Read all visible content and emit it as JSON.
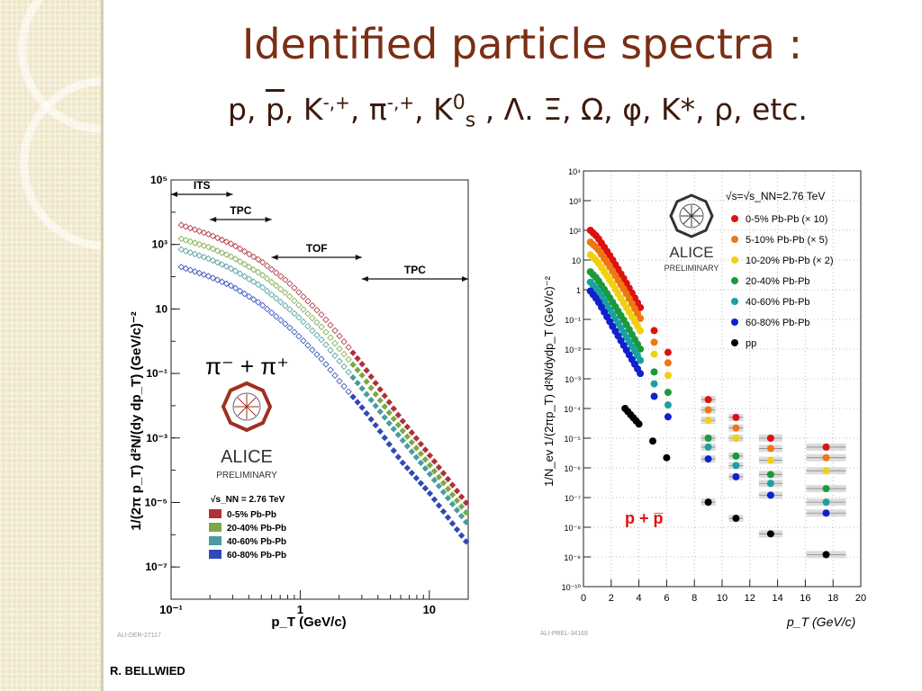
{
  "slide": {
    "title": "Identified particle spectra :",
    "subtitle_parts": [
      "p, ",
      "p",
      ", K",
      "-,+",
      ", π",
      "-,+",
      ", K",
      "0",
      "s",
      " , Λ. Ξ, Ω, φ, K*, ρ, etc."
    ],
    "author": "R. BELLWIED"
  },
  "colors": {
    "title": "#7a2f15",
    "sidebar": "#efe6c8",
    "series_left": [
      "#b0303a",
      "#7aa846",
      "#4a9c9c",
      "#3048b8"
    ],
    "series_right": [
      "#dd1111",
      "#ee7711",
      "#f0d010",
      "#1a9a3a",
      "#1aa0a0",
      "#1020cc",
      "#000000"
    ]
  },
  "chart_data": [
    {
      "type": "scatter",
      "title": "",
      "xlabel": "p_T (GeV/c)",
      "ylabel": "1/(2π p_T) d²N/(dy dp_T) (GeV/c)⁻²",
      "xscale": "log",
      "yscale": "log",
      "xlim": [
        0.1,
        20
      ],
      "ylim": [
        1e-08,
        100000.0
      ],
      "x_tick_labels": [
        "10⁻¹",
        "1",
        "10"
      ],
      "y_tick_labels": [
        "10⁵",
        "10³",
        "10",
        "10⁻¹",
        "10⁻³",
        "10⁻⁵",
        "10⁻⁷"
      ],
      "particle_label": "π⁻ + π⁺",
      "energy_label": "√s_NN = 2.76 TeV",
      "logo_text": [
        "ALICE",
        "PRELIMINARY"
      ],
      "watermark": "ALI-DER-27117",
      "ranges": [
        {
          "label": "ITS",
          "from": 0.1,
          "to": 0.3
        },
        {
          "label": "TPC",
          "from": 0.2,
          "to": 0.6
        },
        {
          "label": "TOF",
          "from": 0.6,
          "to": 3.0
        },
        {
          "label": "TPC",
          "from": 3.0,
          "to": 20
        }
      ],
      "series": [
        {
          "name": "0-5% Pb-Pb",
          "x": [
            0.12,
            0.2,
            0.3,
            0.5,
            0.8,
            1.0,
            1.5,
            2.0,
            3.0,
            4.0,
            6.0,
            10.0,
            20.0
          ],
          "values": [
            4000,
            2000,
            1000,
            300,
            70,
            30,
            6,
            1.5,
            0.2,
            0.04,
            0.004,
            0.0003,
            8e-06
          ]
        },
        {
          "name": "20-40% Pb-Pb",
          "x": [
            0.12,
            0.2,
            0.3,
            0.5,
            0.8,
            1.0,
            1.5,
            2.0,
            3.0,
            4.0,
            6.0,
            10.0,
            20.0
          ],
          "values": [
            1500,
            800,
            400,
            120,
            28,
            12,
            2.5,
            0.6,
            0.09,
            0.018,
            0.002,
            0.00015,
            4e-06
          ]
        },
        {
          "name": "40-60% Pb-Pb",
          "x": [
            0.12,
            0.2,
            0.3,
            0.5,
            0.8,
            1.0,
            1.5,
            2.0,
            3.0,
            4.0,
            6.0,
            10.0,
            20.0
          ],
          "values": [
            700,
            350,
            170,
            50,
            11,
            5,
            1,
            0.25,
            0.035,
            0.008,
            0.001,
            8e-05,
            2e-06
          ]
        },
        {
          "name": "60-80% Pb-Pb",
          "x": [
            0.12,
            0.2,
            0.3,
            0.5,
            0.8,
            1.0,
            1.5,
            2.0,
            3.0,
            4.0,
            6.0,
            10.0,
            20.0
          ],
          "values": [
            200,
            100,
            50,
            14,
            3,
            1.3,
            0.25,
            0.06,
            0.009,
            0.002,
            0.0002,
            2e-05,
            5e-07
          ]
        }
      ]
    },
    {
      "type": "scatter",
      "title": "",
      "xlabel": "p_T (GeV/c)",
      "ylabel": "1/N_ev 1/(2πp_T) d²N/dydp_T (GeV/c)⁻²",
      "xscale": "linear",
      "yscale": "log",
      "xlim": [
        0,
        20
      ],
      "ylim": [
        1e-10,
        10000.0
      ],
      "x_tick_labels": [
        "0",
        "2",
        "4",
        "6",
        "8",
        "10",
        "12",
        "14",
        "16",
        "18",
        "20"
      ],
      "y_tick_labels": [
        "10⁴",
        "10³",
        "10²",
        "10",
        "1",
        "10⁻¹",
        "10⁻²",
        "10⁻³",
        "10⁻⁴",
        "10⁻⁵",
        "10⁻⁶",
        "10⁻⁷",
        "10⁻⁸",
        "10⁻⁹",
        "10⁻¹⁰"
      ],
      "particle_label": "p + p̅",
      "energy_label": "√s=√s_NN=2.76 TeV",
      "logo_text": [
        "ALICE",
        "PRELIMINARY"
      ],
      "watermark": "ALI-PREL-34169",
      "series": [
        {
          "name": "0-5% Pb-Pb (× 10)",
          "x": [
            0.5,
            1,
            2,
            3,
            4,
            5,
            6,
            7,
            9,
            11,
            13.5,
            17.5
          ],
          "values": [
            100,
            60,
            12,
            2,
            0.3,
            0.05,
            0.009,
            0.002,
            0.0002,
            5e-05,
            1e-05,
            5e-06
          ]
        },
        {
          "name": "5-10%  Pb-Pb (× 5)",
          "x": [
            0.5,
            1,
            2,
            3,
            4,
            5,
            6,
            7,
            9,
            11,
            13.5,
            17.5
          ],
          "values": [
            40,
            25,
            5,
            0.9,
            0.13,
            0.02,
            0.004,
            0.0009,
            9e-05,
            2.2e-05,
            4.5e-06,
            2.2e-06
          ]
        },
        {
          "name": "10-20% Pb-Pb (× 2)",
          "x": [
            0.5,
            1,
            2,
            3,
            4,
            5,
            6,
            7,
            9,
            11,
            13.5,
            17.5
          ],
          "values": [
            15,
            9,
            1.8,
            0.3,
            0.05,
            0.008,
            0.0015,
            0.0004,
            4e-05,
            1e-05,
            1.8e-06,
            8e-07
          ]
        },
        {
          "name": "20-40% Pb-Pb",
          "x": [
            0.5,
            1,
            2,
            3,
            4,
            5,
            6,
            7,
            9,
            11,
            13.5,
            17.5
          ],
          "values": [
            4,
            2.3,
            0.45,
            0.08,
            0.012,
            0.002,
            0.0004,
            0.0001,
            1e-05,
            2.5e-06,
            6e-07,
            2e-07
          ]
        },
        {
          "name": "40-60% Pb-Pb",
          "x": [
            0.5,
            1,
            2,
            3,
            4,
            5,
            6,
            7,
            9,
            11,
            13.5,
            17.5
          ],
          "values": [
            1.8,
            1.0,
            0.18,
            0.03,
            0.005,
            0.0008,
            0.00015,
            4e-05,
            5e-06,
            1.2e-06,
            3e-07,
            7e-08
          ]
        },
        {
          "name": "60-80% Pb-Pb",
          "x": [
            0.5,
            1,
            2,
            3,
            4,
            5,
            6,
            7,
            9,
            11,
            13.5,
            17.5
          ],
          "values": [
            0.9,
            0.45,
            0.07,
            0.011,
            0.0018,
            0.0003,
            6e-05,
            1.5e-05,
            2e-06,
            5e-07,
            1.2e-07,
            3e-08
          ]
        },
        {
          "name": "pp",
          "x": [
            3,
            4,
            5,
            6,
            7,
            9,
            11,
            13.5,
            17.5
          ],
          "values": [
            0.0001,
            3e-05,
            8e-06,
            2.2e-06,
            6e-07,
            7e-08,
            2e-08,
            6e-09,
            1.2e-09
          ]
        }
      ]
    }
  ]
}
